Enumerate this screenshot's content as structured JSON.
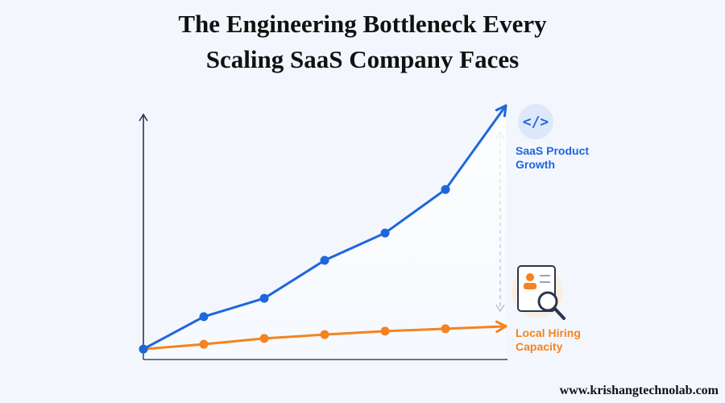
{
  "chart_data": {
    "type": "line",
    "title": "The Engineering Bottleneck Every Scaling SaaS Company Faces",
    "x": [
      0,
      1,
      2,
      3,
      4,
      5,
      6
    ],
    "xlim": [
      0,
      6
    ],
    "ylim": [
      0,
      105
    ],
    "series": [
      {
        "name": "SaaS Product Growth",
        "color": "#1f66dc",
        "values": [
          4.3,
          17.7,
          25.3,
          41,
          52.3,
          70.3,
          105
        ]
      },
      {
        "name": "Local Hiring Capacity",
        "color": "#f5831f",
        "values": [
          4.3,
          6.3,
          8.7,
          10.3,
          11.7,
          12.7,
          13.7
        ]
      }
    ],
    "footer": "www.krishangtechnolab.com"
  }
}
